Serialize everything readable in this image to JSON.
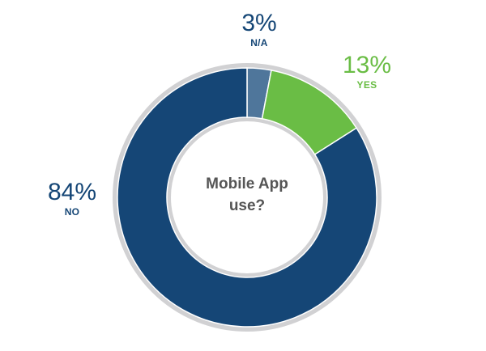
{
  "chart_data": {
    "type": "pie",
    "title": "Mobile App use?",
    "categories": [
      "N/A",
      "YES",
      "NO"
    ],
    "values": [
      3,
      13,
      84
    ],
    "value_labels": [
      "3%",
      "13%",
      "84%"
    ],
    "colors": [
      "#4f769b",
      "#6abd45",
      "#154676"
    ],
    "ring_color": "#d1d1d3",
    "center_label_color": "#555555"
  }
}
